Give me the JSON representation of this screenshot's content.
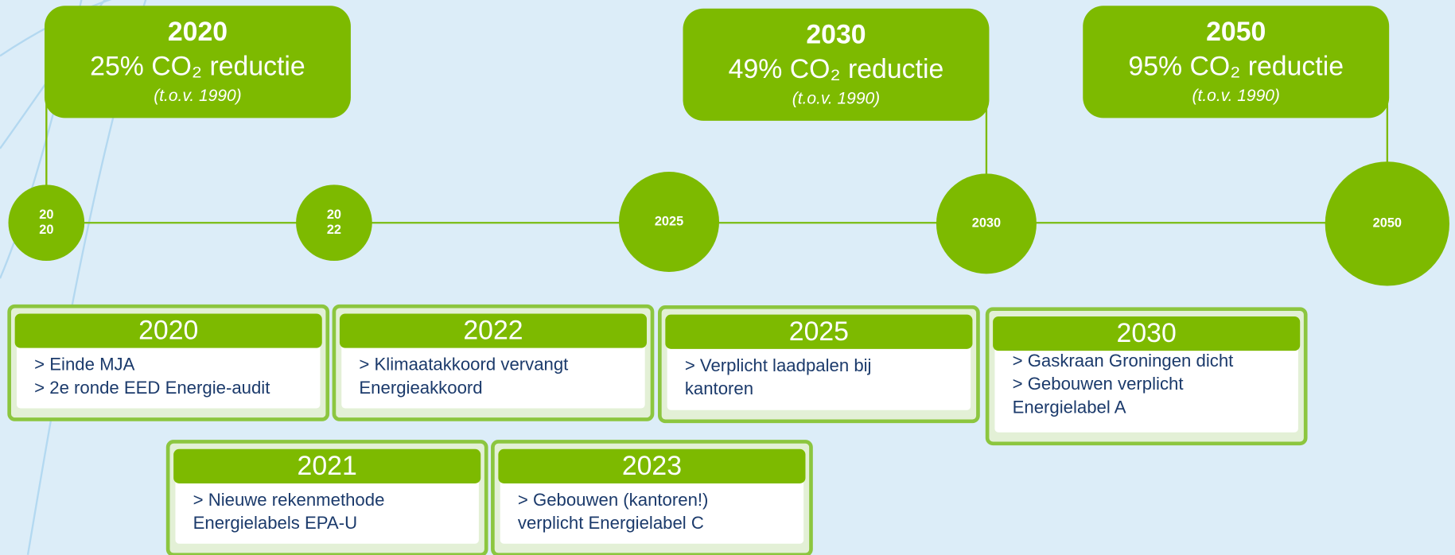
{
  "goals": [
    {
      "year": "2020",
      "text": "25% CO₂ reductie",
      "note": "(t.o.v. 1990)"
    },
    {
      "year": "2030",
      "text": "49% CO₂ reductie",
      "note": "(t.o.v. 1990)"
    },
    {
      "year": "2050",
      "text": "95% CO₂ reductie",
      "note": "(t.o.v. 1990)"
    }
  ],
  "timeline": [
    {
      "lines": [
        "20",
        "20"
      ]
    },
    {
      "lines": [
        "20",
        "22"
      ]
    },
    {
      "lines": [
        "2025"
      ]
    },
    {
      "lines": [
        "2030"
      ]
    },
    {
      "lines": [
        "2050"
      ]
    }
  ],
  "events": [
    {
      "year": "2020",
      "lines": [
        "> Einde MJA",
        "> 2e ronde EED Energie-audit"
      ]
    },
    {
      "year": "2022",
      "lines": [
        "> Klimaatakkoord vervangt",
        "Energieakkoord"
      ]
    },
    {
      "year": "2025",
      "lines": [
        "> Verplicht laadpalen bij",
        "kantoren"
      ]
    },
    {
      "year": "2030",
      "lines": [
        "> Gaskraan Groningen dicht",
        "> Gebouwen verplicht",
        "Energielabel A"
      ]
    },
    {
      "year": "2021",
      "lines": [
        "> Nieuwe rekenmethode",
        "Energielabels EPA-U"
      ]
    },
    {
      "year": "2023",
      "lines": [
        "> Gebouwen (kantoren!)",
        "verplicht Energielabel C"
      ]
    }
  ]
}
